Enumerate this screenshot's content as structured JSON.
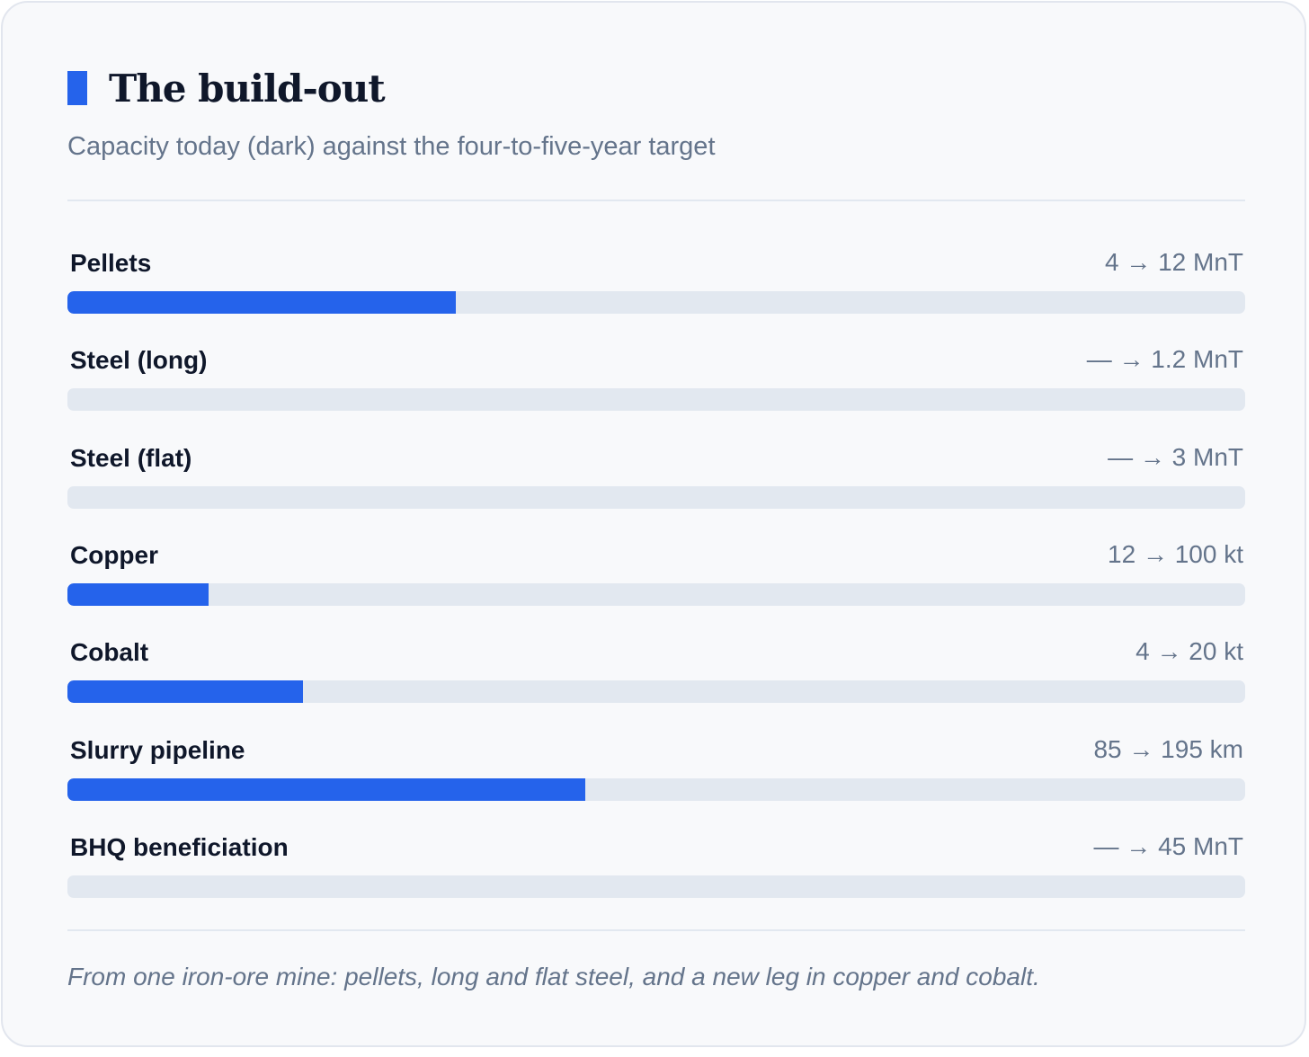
{
  "card": {
    "title": "The build-out",
    "subtitle": "Capacity today (dark) against the four-to-five-year target",
    "footnote": "From one iron-ore mine: pellets, long and flat steel, and a new leg in copper and cobalt."
  },
  "colors": {
    "accent": "#2563eb",
    "track": "#e2e8f0",
    "label": "#0f172a",
    "muted": "#64748b"
  },
  "chart_data": {
    "type": "bar",
    "orientation": "horizontal",
    "title": "The build-out",
    "subtitle": "Capacity today (dark) against the four-to-five-year target",
    "categories": [
      "Pellets",
      "Steel (long)",
      "Steel (flat)",
      "Copper",
      "Cobalt",
      "Slurry pipeline",
      "BHQ beneficiation"
    ],
    "series": [
      {
        "name": "today",
        "values": [
          4,
          0,
          0,
          12,
          4,
          85,
          0
        ]
      },
      {
        "name": "target",
        "values": [
          12,
          1.2,
          3,
          100,
          20,
          195,
          45
        ]
      }
    ],
    "value_labels": [
      "4 → 12 MnT",
      "— → 1.2 MnT",
      "— → 3 MnT",
      "12 → 100 kt",
      "4 → 20 kt",
      "85 → 195 km",
      "— → 45 MnT"
    ],
    "fill_fraction": [
      0.33,
      0,
      0,
      0.12,
      0.2,
      0.44,
      0
    ],
    "grid": false
  }
}
